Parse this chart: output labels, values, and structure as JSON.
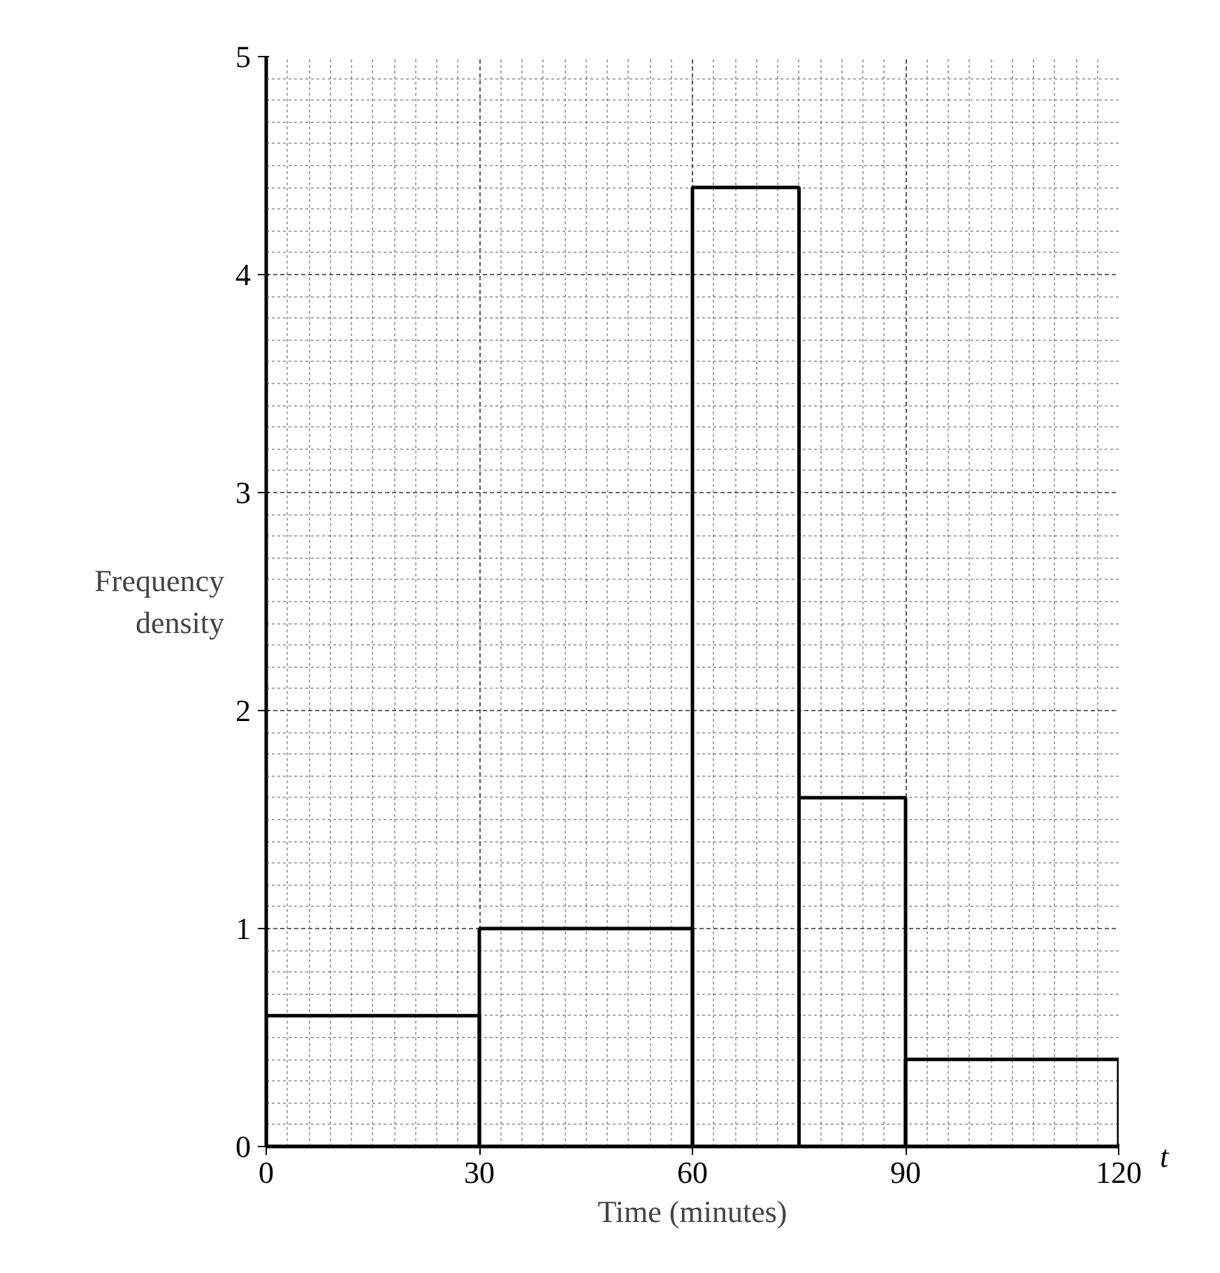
{
  "chart_data": {
    "type": "histogram",
    "xlabel": "Time (minutes)",
    "ylabel": "Frequency density",
    "annotations": [
      "t"
    ],
    "bins": [
      0,
      30,
      60,
      75,
      90,
      120
    ],
    "values": [
      0.6,
      1.0,
      4.4,
      1.6,
      0.4
    ],
    "color": "#000000",
    "xlim": [
      0,
      120
    ],
    "ylim": [
      0,
      5
    ],
    "xticks": [
      0,
      30,
      60,
      90,
      120
    ],
    "yticks": [
      0,
      1,
      2,
      3,
      4,
      5
    ],
    "grid": true
  }
}
